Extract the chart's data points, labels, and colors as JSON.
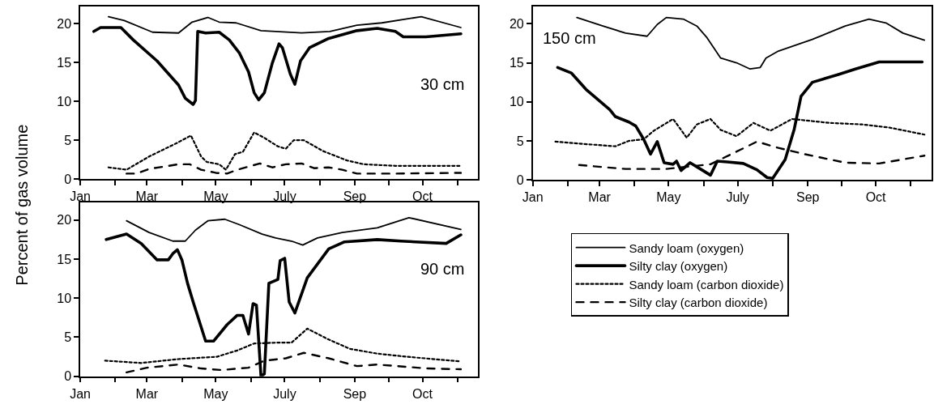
{
  "chart_data": [
    {
      "type": "line",
      "ylabel": "Percent of gas volume",
      "annotations": [
        "30 cm"
      ],
      "xlim": [
        "--01-01",
        "--12-19"
      ],
      "ylim": [
        0,
        22.2
      ],
      "xticks": [
        {
          "value": "--01-01",
          "label": "Jan"
        },
        {
          "value": "--02-01",
          "label": null
        },
        {
          "value": "--03-01",
          "label": "Mar"
        },
        {
          "value": "--04-01",
          "label": null
        },
        {
          "value": "--05-01",
          "label": "May"
        },
        {
          "value": "--06-01",
          "label": null
        },
        {
          "value": "--07-01",
          "label": "July"
        },
        {
          "value": "--08-01",
          "label": null
        },
        {
          "value": "--09-01",
          "label": "Sep"
        },
        {
          "value": "--10-01",
          "label": null
        },
        {
          "value": "--10-31",
          "label": "Oct"
        },
        {
          "value": "--12-01",
          "label": null
        }
      ],
      "yticks": [
        0,
        5,
        10,
        15,
        20
      ],
      "grid": false,
      "legend": false,
      "marker": "none",
      "series": [
        {
          "color": "#000000",
          "line_style": "solid",
          "x": [
            "--01-26",
            "--02-09",
            "--03-06",
            "--03-29",
            "--04-10",
            "--04-24",
            "--05-04",
            "--05-19",
            "--06-10",
            "--07-16",
            "--08-10",
            "--09-03",
            "--09-25",
            "--10-30",
            "--12-04"
          ],
          "values": [
            20.9,
            20.4,
            18.9,
            18.8,
            20.2,
            20.8,
            20.2,
            20.1,
            19.1,
            18.8,
            19.0,
            19.8,
            20.1,
            20.9,
            19.5
          ]
        },
        {
          "color": "#000000",
          "line_style": "solid",
          "x": [
            "--01-13",
            "--01-19",
            "--02-06",
            "--02-17",
            "--03-10",
            "--03-29",
            "--04-04",
            "--04-11",
            "--04-13",
            "--04-15",
            "--04-22",
            "--05-04",
            "--05-13",
            "--05-22",
            "--05-30",
            "--06-04",
            "--06-08",
            "--06-13",
            "--06-20",
            "--06-26",
            "--06-29",
            "--07-06",
            "--07-10",
            "--07-15",
            "--07-23",
            "--08-09",
            "--09-03",
            "--09-21",
            "--10-07",
            "--10-14",
            "--11-03",
            "--12-04"
          ],
          "values": [
            19.0,
            19.5,
            19.5,
            17.9,
            15.2,
            12.1,
            10.4,
            9.6,
            10.1,
            19.0,
            18.8,
            18.9,
            17.9,
            16.2,
            13.8,
            11.1,
            10.2,
            11.1,
            14.9,
            17.4,
            16.9,
            13.5,
            12.2,
            15.2,
            16.9,
            18.1,
            19.1,
            19.4,
            19.0,
            18.3,
            18.3,
            18.7
          ]
        },
        {
          "color": "#000000",
          "line_style": "dotted",
          "x": [
            "--01-26",
            "--02-11",
            "--03-03",
            "--03-27",
            "--04-09",
            "--04-18",
            "--04-23",
            "--05-04",
            "--05-10",
            "--05-18",
            "--05-25",
            "--06-04",
            "--06-13",
            "--06-25",
            "--07-02",
            "--07-09",
            "--07-18",
            "--08-04",
            "--08-25",
            "--09-09",
            "--10-07",
            "--12-04"
          ],
          "values": [
            1.5,
            1.2,
            2.9,
            4.6,
            5.6,
            2.9,
            2.2,
            1.9,
            1.2,
            3.2,
            3.5,
            6.0,
            5.3,
            4.2,
            3.9,
            5.0,
            5.0,
            3.6,
            2.4,
            1.9,
            1.7,
            1.7
          ]
        },
        {
          "color": "#000000",
          "line_style": "dashed",
          "x": [
            "--02-11",
            "--02-20",
            "--03-03",
            "--03-29",
            "--04-08",
            "--04-18",
            "--05-01",
            "--05-11",
            "--05-20",
            "--06-09",
            "--06-20",
            "--07-02",
            "--07-16",
            "--07-27",
            "--08-09",
            "--08-21",
            "--09-03",
            "--10-07",
            "--12-04"
          ],
          "values": [
            0.7,
            0.7,
            1.3,
            1.9,
            1.9,
            1.2,
            0.8,
            0.7,
            1.2,
            2.0,
            1.5,
            1.9,
            2.0,
            1.4,
            1.5,
            1.2,
            0.7,
            0.7,
            0.8
          ]
        }
      ]
    },
    {
      "type": "line",
      "annotations": [
        "150 cm"
      ],
      "xlim": [
        "--01-01",
        "--12-19"
      ],
      "ylim": [
        0,
        22.2
      ],
      "xticks": [
        {
          "value": "--01-01",
          "label": "Jan"
        },
        {
          "value": "--02-01",
          "label": null
        },
        {
          "value": "--03-01",
          "label": "Mar"
        },
        {
          "value": "--04-01",
          "label": null
        },
        {
          "value": "--05-01",
          "label": "May"
        },
        {
          "value": "--06-01",
          "label": null
        },
        {
          "value": "--07-01",
          "label": "July"
        },
        {
          "value": "--08-01",
          "label": null
        },
        {
          "value": "--09-01",
          "label": "Sep"
        },
        {
          "value": "--10-01",
          "label": null
        },
        {
          "value": "--10-31",
          "label": "Oct"
        },
        {
          "value": "--12-01",
          "label": null
        }
      ],
      "yticks": [
        0,
        5,
        10,
        15,
        20
      ],
      "grid": false,
      "legend": "bottom",
      "marker": "none",
      "series": [
        {
          "name": "Sandy loam (oxygen)",
          "color": "#000000",
          "line_style": "solid",
          "x": [
            "--02-09",
            "--03-04",
            "--03-24",
            "--04-12",
            "--04-21",
            "--04-29",
            "--05-14",
            "--05-26",
            "--06-04",
            "--06-16",
            "--06-30",
            "--07-12",
            "--07-21",
            "--07-26",
            "--08-06",
            "--09-05",
            "--10-04",
            "--10-25",
            "--11-09",
            "--11-24",
            "--12-13"
          ],
          "values": [
            20.8,
            19.7,
            18.8,
            18.4,
            19.9,
            20.8,
            20.6,
            19.7,
            18.2,
            15.6,
            15.0,
            14.2,
            14.4,
            15.6,
            16.5,
            18.0,
            19.7,
            20.6,
            20.1,
            18.8,
            17.9
          ]
        },
        {
          "name": "Silty clay (oxygen)",
          "color": "#000000",
          "line_style": "solid",
          "x": [
            "--01-23",
            "--02-04",
            "--02-17",
            "--03-10",
            "--03-15",
            "--03-27",
            "--04-02",
            "--04-09",
            "--04-15",
            "--04-21",
            "--04-27",
            "--05-05",
            "--05-08",
            "--05-12",
            "--05-20",
            "--05-29",
            "--06-07",
            "--06-13",
            "--06-22",
            "--07-06",
            "--07-18",
            "--07-27",
            "--08-01",
            "--08-12",
            "--08-20",
            "--08-26",
            "--09-05",
            "--09-28",
            "--10-13",
            "--11-03",
            "--12-11"
          ],
          "values": [
            14.4,
            13.7,
            11.6,
            9.0,
            8.1,
            7.4,
            6.9,
            5.2,
            3.3,
            4.9,
            2.2,
            2.0,
            2.4,
            1.2,
            2.2,
            1.4,
            0.6,
            2.4,
            2.3,
            2.1,
            1.3,
            0.3,
            0.2,
            2.6,
            6.5,
            10.7,
            12.5,
            13.5,
            14.2,
            15.1,
            15.1
          ]
        },
        {
          "name": "Sandy loam (carbon dioxide)",
          "color": "#000000",
          "line_style": "dotted",
          "x": [
            "--01-21",
            "--02-15",
            "--03-15",
            "--03-27",
            "--04-09",
            "--04-18",
            "--05-05",
            "--05-17",
            "--05-26",
            "--06-07",
            "--06-16",
            "--06-30",
            "--07-15",
            "--07-30",
            "--08-18",
            "--09-20",
            "--10-19",
            "--11-12",
            "--12-13"
          ],
          "values": [
            4.9,
            4.6,
            4.3,
            5.0,
            5.2,
            6.3,
            7.8,
            5.4,
            7.1,
            7.8,
            6.4,
            5.6,
            7.3,
            6.3,
            7.8,
            7.3,
            7.1,
            6.7,
            5.8
          ]
        },
        {
          "name": "Silty clay (carbon dioxide)",
          "color": "#000000",
          "line_style": "dashed",
          "x": [
            "--02-11",
            "--03-24",
            "--04-29",
            "--06-07",
            "--07-04",
            "--07-18",
            "--08-06",
            "--08-29",
            "--10-04",
            "--11-03",
            "--12-13"
          ],
          "values": [
            1.9,
            1.4,
            1.4,
            2.0,
            3.9,
            4.9,
            4.1,
            3.3,
            2.2,
            2.1,
            3.1
          ]
        }
      ]
    },
    {
      "type": "line",
      "annotations": [
        "90 cm"
      ],
      "xlim": [
        "--01-01",
        "--12-19"
      ],
      "ylim": [
        0,
        22.2
      ],
      "xticks": [
        {
          "value": "--01-01",
          "label": "Jan"
        },
        {
          "value": "--02-01",
          "label": null
        },
        {
          "value": "--03-01",
          "label": "Mar"
        },
        {
          "value": "--04-01",
          "label": null
        },
        {
          "value": "--05-01",
          "label": "May"
        },
        {
          "value": "--06-01",
          "label": null
        },
        {
          "value": "--07-01",
          "label": "July"
        },
        {
          "value": "--08-01",
          "label": null
        },
        {
          "value": "--09-01",
          "label": "Sep"
        },
        {
          "value": "--10-01",
          "label": null
        },
        {
          "value": "--10-31",
          "label": "Oct"
        },
        {
          "value": "--12-01",
          "label": null
        }
      ],
      "yticks": [
        0,
        5,
        10,
        15,
        20
      ],
      "grid": false,
      "legend": false,
      "marker": "none",
      "series": [
        {
          "color": "#000000",
          "line_style": "solid",
          "x": [
            "--02-11",
            "--03-03",
            "--03-24",
            "--04-04",
            "--04-13",
            "--04-24",
            "--05-09",
            "--05-22",
            "--06-11",
            "--06-23",
            "--07-07",
            "--07-17",
            "--07-30",
            "--08-21",
            "--09-21",
            "--10-19",
            "--12-04"
          ],
          "values": [
            19.9,
            18.4,
            17.3,
            17.3,
            18.7,
            19.9,
            20.1,
            19.4,
            18.2,
            17.7,
            17.3,
            16.8,
            17.7,
            18.4,
            19.0,
            20.3,
            18.8
          ]
        },
        {
          "color": "#000000",
          "line_style": "solid",
          "x": [
            "--01-24",
            "--02-11",
            "--02-24",
            "--03-10",
            "--03-20",
            "--03-24",
            "--03-28",
            "--04-01",
            "--04-06",
            "--04-11",
            "--04-22",
            "--04-29",
            "--05-11",
            "--05-20",
            "--05-25",
            "--05-30",
            "--06-03",
            "--06-06",
            "--06-10",
            "--06-13",
            "--06-17",
            "--06-25",
            "--06-27",
            "--07-01",
            "--07-05",
            "--07-10",
            "--07-21",
            "--08-09",
            "--08-23",
            "--09-21",
            "--10-12",
            "--11-21",
            "--12-04"
          ],
          "values": [
            17.5,
            18.2,
            17.0,
            14.9,
            14.9,
            15.7,
            16.2,
            14.9,
            11.9,
            9.5,
            4.5,
            4.5,
            6.6,
            7.8,
            7.8,
            5.4,
            9.3,
            9.1,
            0,
            0.3,
            11.9,
            12.4,
            14.8,
            15.1,
            9.5,
            8.1,
            12.6,
            16.3,
            17.2,
            17.5,
            17.3,
            17.0,
            18.1
          ]
        },
        {
          "color": "#000000",
          "line_style": "dotted",
          "x": [
            "--01-23",
            "--02-24",
            "--03-29",
            "--05-02",
            "--05-20",
            "--06-04",
            "--06-23",
            "--07-07",
            "--07-21",
            "--08-09",
            "--08-28",
            "--09-21",
            "--10-17",
            "--12-04"
          ],
          "values": [
            2.0,
            1.7,
            2.2,
            2.5,
            3.3,
            4.2,
            4.3,
            4.3,
            6.1,
            4.7,
            3.5,
            2.9,
            2.5,
            1.9
          ]
        },
        {
          "color": "#000000",
          "line_style": "dashed",
          "x": [
            "--02-11",
            "--03-01",
            "--03-29",
            "--04-18",
            "--05-06",
            "--05-30",
            "--06-13",
            "--07-02",
            "--07-18",
            "--08-09",
            "--09-03",
            "--09-21",
            "--11-04",
            "--12-04"
          ],
          "values": [
            0.5,
            1.1,
            1.5,
            1.0,
            0.8,
            1.1,
            2.0,
            2.3,
            3.0,
            2.3,
            1.3,
            1.5,
            1.0,
            0.9
          ]
        }
      ]
    }
  ]
}
